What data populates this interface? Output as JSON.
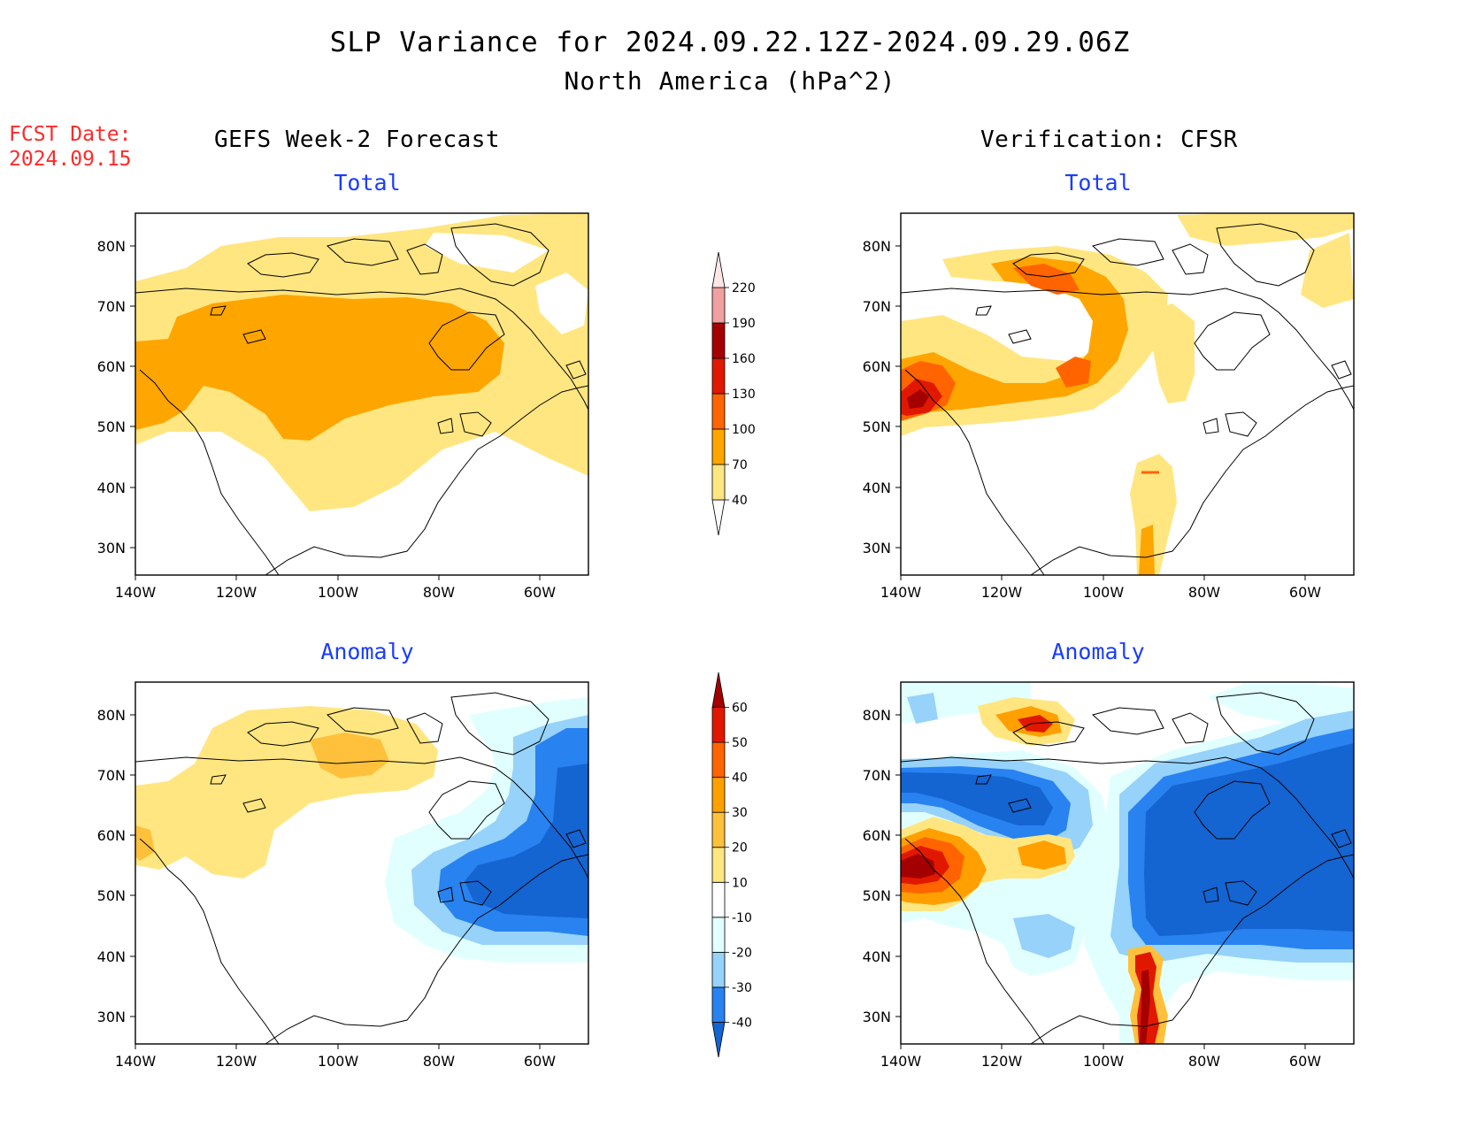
{
  "title": "SLP Variance for 2024.09.22.12Z-2024.09.29.06Z",
  "subtitle": "North America (hPa^2)",
  "fcst_date": {
    "label": "FCST Date:",
    "value": "2024.09.15"
  },
  "columns": {
    "left": "GEFS Week-2 Forecast",
    "right": "Verification: CFSR"
  },
  "panels": [
    {
      "id": "gefs-total",
      "title": "Total"
    },
    {
      "id": "cfsr-total",
      "title": "Total"
    },
    {
      "id": "gefs-anomaly",
      "title": "Anomaly"
    },
    {
      "id": "cfsr-anomaly",
      "title": "Anomaly"
    }
  ],
  "axes": {
    "lat_ticks": [
      "80N",
      "70N",
      "60N",
      "50N",
      "40N",
      "30N"
    ],
    "lon_ticks": [
      "140W",
      "120W",
      "100W",
      "80W",
      "60W"
    ]
  },
  "colorbars": {
    "total": {
      "levels": [
        "40",
        "70",
        "100",
        "130",
        "160",
        "190",
        "220"
      ],
      "colors": [
        "#ffffff",
        "#ffe680",
        "#ffa500",
        "#ff6400",
        "#e11800",
        "#a50000",
        "#f0a0a0",
        "#ffe6e6"
      ]
    },
    "anomaly": {
      "levels": [
        "-40",
        "-30",
        "-20",
        "-10",
        "10",
        "20",
        "30",
        "40",
        "50",
        "60"
      ],
      "colors": [
        "#1464d2",
        "#2882f0",
        "#96d2fa",
        "#e1ffff",
        "#ffffff",
        "#ffe680",
        "#ffc03c",
        "#ffa000",
        "#ff6400",
        "#e11800",
        "#a50000"
      ]
    }
  },
  "colors": {
    "ramp_total": [
      "#ffe680",
      "#ffa500",
      "#ff6400",
      "#e11800",
      "#a50000"
    ],
    "ramp_pos": [
      "#ffe680",
      "#ffc03c",
      "#ffa000",
      "#ff6400",
      "#e11800",
      "#a50000"
    ],
    "ramp_neg": [
      "#e1ffff",
      "#96d2fa",
      "#2882f0",
      "#1464d2"
    ]
  }
}
